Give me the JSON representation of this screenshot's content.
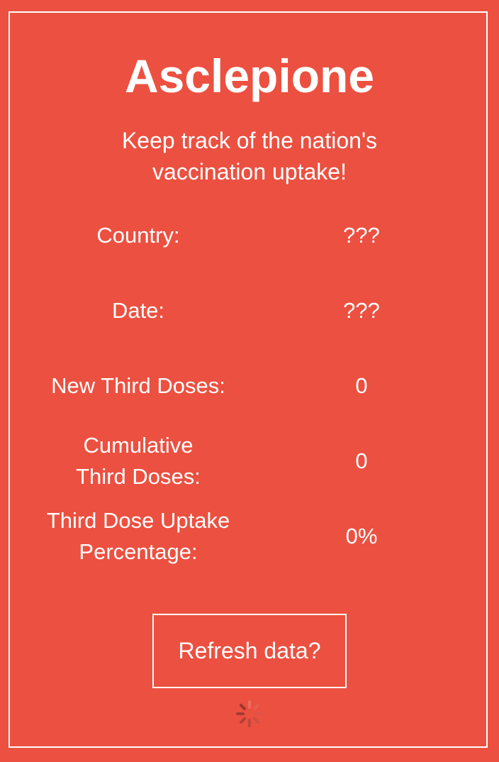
{
  "app": {
    "title": "Asclepione",
    "subtitle": "Keep track of the nation's vaccination uptake!"
  },
  "rows": [
    {
      "label": "Country:",
      "value": "???"
    },
    {
      "label": "Date:",
      "value": "???"
    },
    {
      "label": "New Third Doses:",
      "value": "0"
    },
    {
      "label": "Cumulative Third Doses:",
      "value": "0"
    },
    {
      "label": "Third Dose Uptake Percentage:",
      "value": "0%"
    }
  ],
  "actions": {
    "refresh_label": "Refresh data?"
  },
  "status": {
    "loading_icon": "spinner-icon"
  },
  "colors": {
    "background": "#ec5040",
    "foreground": "#ffffff"
  }
}
